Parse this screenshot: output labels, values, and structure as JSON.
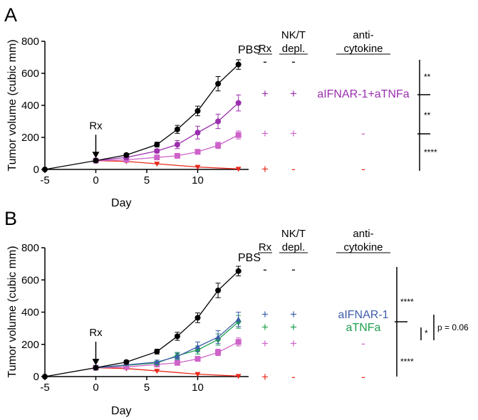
{
  "chart_data": [
    {
      "type": "line",
      "panel": "A",
      "xlabel": "Day",
      "ylabel": "Tumor volume (cubic mm)",
      "xlim": [
        -5,
        15
      ],
      "ylim": [
        0,
        800
      ],
      "xticks": [
        -5,
        0,
        5,
        10
      ],
      "yticks": [
        0,
        200,
        400,
        600,
        800
      ],
      "annotation": {
        "text": "Rx",
        "x": 0,
        "arrow_from": 190,
        "arrow_to": 70
      },
      "series": [
        {
          "name": "PBS",
          "color": "#000000",
          "marker": "circle",
          "x": [
            -5,
            0,
            3,
            6,
            8,
            10,
            12,
            14
          ],
          "y": [
            0,
            55,
            90,
            155,
            250,
            365,
            535,
            655
          ],
          "err": [
            0,
            8,
            10,
            15,
            25,
            30,
            45,
            30
          ]
        },
        {
          "name": "Rx + NK/T depl. + aIFNAR-1+aTNFa",
          "color": "#9B2FAE",
          "marker": "circle",
          "x": [
            0,
            3,
            6,
            8,
            10,
            12,
            14
          ],
          "y": [
            55,
            75,
            115,
            155,
            230,
            300,
            415
          ],
          "err": [
            8,
            8,
            12,
            25,
            40,
            45,
            50
          ]
        },
        {
          "name": "Rx + NK/T depl.",
          "color": "#CE63C9",
          "marker": "square",
          "x": [
            0,
            3,
            6,
            8,
            10,
            12,
            14
          ],
          "y": [
            55,
            60,
            75,
            85,
            110,
            150,
            215
          ],
          "err": [
            8,
            8,
            10,
            10,
            15,
            20,
            25
          ]
        },
        {
          "name": "Rx",
          "color": "#E8291C",
          "marker": "triangle-down",
          "x": [
            0,
            3,
            6,
            10,
            14
          ],
          "y": [
            55,
            50,
            35,
            15,
            3
          ],
          "err": [
            0,
            0,
            0,
            0,
            0
          ]
        }
      ],
      "legend_headers": [
        "Rx",
        "NK/T depl.",
        "anti-cytokine"
      ],
      "legend_rows": [
        {
          "label": "PBS",
          "rx": "-",
          "nkt": "-",
          "cytokine": "",
          "color": "#000000"
        },
        {
          "rx": "+",
          "nkt": "+",
          "cytokine": "aIFNAR-1+aTNFa",
          "color": "#9B2FAE"
        },
        {
          "rx": "+",
          "nkt": "+",
          "cytokine": "-",
          "color": "#CE63C9"
        },
        {
          "rx": "+",
          "nkt": "-",
          "cytokine": "-",
          "color": "#E8291C"
        }
      ],
      "significance": [
        "**",
        "**",
        "****"
      ]
    },
    {
      "type": "line",
      "panel": "B",
      "xlabel": "Day",
      "ylabel": "Tumor volume (cubic mm)",
      "xlim": [
        -5,
        15
      ],
      "ylim": [
        0,
        800
      ],
      "xticks": [
        -5,
        0,
        5,
        10
      ],
      "yticks": [
        0,
        200,
        400,
        600,
        800
      ],
      "annotation": {
        "text": "Rx",
        "x": 0,
        "arrow_from": 190,
        "arrow_to": 70
      },
      "series": [
        {
          "name": "PBS",
          "color": "#000000",
          "marker": "circle",
          "x": [
            -5,
            0,
            3,
            6,
            8,
            10,
            12,
            14
          ],
          "y": [
            0,
            55,
            90,
            155,
            250,
            365,
            535,
            655
          ],
          "err": [
            0,
            8,
            10,
            15,
            25,
            30,
            45,
            30
          ]
        },
        {
          "name": "Rx + NK/T depl. + aIFNAR-1",
          "color": "#3E5DAA",
          "marker": "triangle-up",
          "x": [
            0,
            6,
            8,
            10,
            12,
            14
          ],
          "y": [
            55,
            90,
            125,
            185,
            245,
            355
          ],
          "err": [
            8,
            12,
            20,
            30,
            40,
            45
          ]
        },
        {
          "name": "Rx + NK/T depl. + aTNFa",
          "color": "#1E9E4E",
          "marker": "diamond",
          "x": [
            0,
            6,
            8,
            10,
            12,
            14
          ],
          "y": [
            55,
            85,
            130,
            165,
            230,
            340
          ],
          "err": [
            8,
            10,
            20,
            25,
            35,
            40
          ]
        },
        {
          "name": "Rx + NK/T depl.",
          "color": "#CE63C9",
          "marker": "square",
          "x": [
            0,
            3,
            6,
            8,
            10,
            12,
            14
          ],
          "y": [
            55,
            60,
            75,
            85,
            110,
            150,
            215
          ],
          "err": [
            8,
            8,
            10,
            10,
            15,
            20,
            25
          ]
        },
        {
          "name": "Rx",
          "color": "#E8291C",
          "marker": "triangle-down",
          "x": [
            0,
            3,
            6,
            10,
            14
          ],
          "y": [
            55,
            50,
            35,
            15,
            3
          ],
          "err": [
            0,
            0,
            0,
            0,
            0
          ]
        }
      ],
      "legend_headers": [
        "Rx",
        "NK/T depl.",
        "anti-cytokine"
      ],
      "legend_rows": [
        {
          "label": "PBS",
          "rx": "-",
          "nkt": "-",
          "cytokine": "",
          "color": "#000000"
        },
        {
          "rx": "+",
          "nkt": "+",
          "cytokine": "aIFNAR-1",
          "color": "#3E5DAA"
        },
        {
          "rx": "+",
          "nkt": "+",
          "cytokine": "aTNFa",
          "color": "#1E9E4E"
        },
        {
          "rx": "+",
          "nkt": "+",
          "cytokine": "-",
          "color": "#CE63C9"
        },
        {
          "rx": "+",
          "nkt": "-",
          "cytokine": "-",
          "color": "#E8291C"
        }
      ],
      "significance": [
        "****",
        "*",
        "p = 0.06",
        "****"
      ]
    }
  ]
}
